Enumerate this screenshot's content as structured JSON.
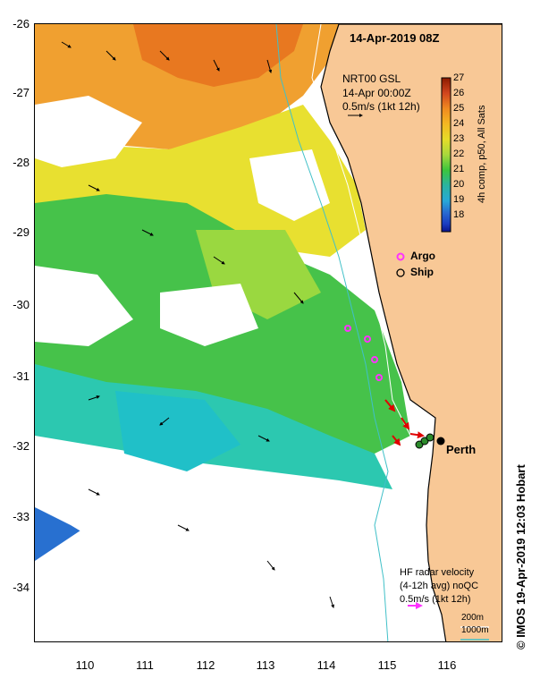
{
  "title": "14-Apr-2019 08Z",
  "y_tick_labels": [
    "-26",
    "-27",
    "-28",
    "-29",
    "-30",
    "-31",
    "-32",
    "-33",
    "-34"
  ],
  "x_tick_labels": [
    "110",
    "111",
    "112",
    "113",
    "114",
    "115",
    "116"
  ],
  "current_model": {
    "line1": "NRT00 GSL",
    "line2": "14-Apr 00:00Z",
    "line3": "0.5m/s (1kt 12h)"
  },
  "colorbar": {
    "label": "4h comp, p50, All Sats",
    "ticks": [
      "27",
      "26",
      "25",
      "24",
      "23",
      "22",
      "21",
      "20",
      "19",
      "18"
    ],
    "colors": [
      "#8b1a00",
      "#d2461e",
      "#f08a20",
      "#f4b822",
      "#e6dc28",
      "#a8d83c",
      "#3cc53c",
      "#2ab4a0",
      "#28a8d8",
      "#2868d0",
      "#1a3cc0",
      "#0a148c"
    ]
  },
  "legend": {
    "argo_label": "Argo",
    "ship_label": "Ship",
    "argo_color": "#ff33ff"
  },
  "city_label": "Perth",
  "hf_radar": {
    "line1": "HF radar velocity",
    "line2": "(4-12h avg) noQC",
    "line3": "0.5m/s (1kt 12h)",
    "arrow_color": "#ff33ff"
  },
  "depth_legend": {
    "label1": "200m",
    "label2": "1000m",
    "color2": "#40c0c8"
  },
  "land_color": "#f8c896",
  "copyright": "© IMOS 19-Apr-2019 12:03 Hobart"
}
